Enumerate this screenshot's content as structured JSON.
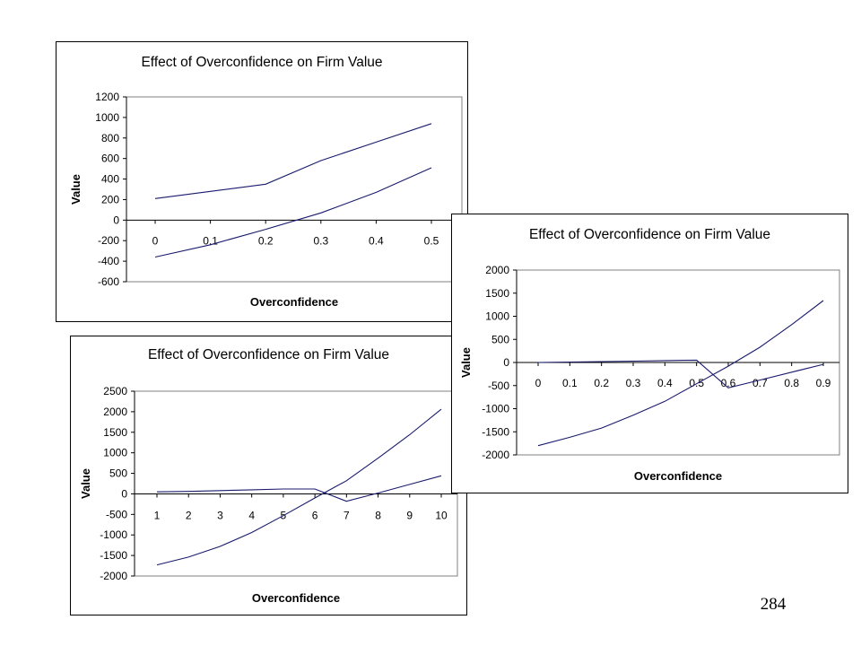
{
  "page": {
    "number": "284"
  },
  "chart_data": [
    {
      "type": "line",
      "title": "Effect of Overconfidence on Firm Value",
      "xlabel": "Overconfidence",
      "ylabel": "Value",
      "x": [
        0,
        0.1,
        0.2,
        0.3,
        0.4,
        0.5
      ],
      "x_tick_labels": [
        "0",
        "0.1",
        "0.2",
        "0.3",
        "0.4",
        "0.5"
      ],
      "ylim": [
        -600,
        1200
      ],
      "y_ticks": [
        -600,
        -400,
        -200,
        0,
        200,
        400,
        600,
        800,
        1000,
        1200
      ],
      "grid": false,
      "legend": "none",
      "line_color": "#1a1a6e",
      "series": [
        {
          "values": [
            210,
            280,
            350,
            580,
            760,
            940
          ]
        },
        {
          "values": [
            -360,
            -240,
            -90,
            70,
            270,
            510
          ]
        }
      ]
    },
    {
      "type": "line",
      "title": "Effect of Overconfidence on Firm Value",
      "xlabel": "Overconfidence",
      "ylabel": "Value",
      "x": [
        0,
        0.1,
        0.2,
        0.3,
        0.4,
        0.5,
        0.6,
        0.7,
        0.8,
        0.9
      ],
      "x_tick_labels": [
        "0",
        "0.1",
        "0.2",
        "0.3",
        "0.4",
        "0.5",
        "0.6",
        "0.7",
        "0.8",
        "0.9"
      ],
      "ylim": [
        -2000,
        2000
      ],
      "y_ticks": [
        -2000,
        -1500,
        -1000,
        -500,
        0,
        500,
        1000,
        1500,
        2000
      ],
      "grid": false,
      "legend": "none",
      "line_color": "#1a1a6e",
      "series": [
        {
          "values": [
            0,
            10,
            20,
            30,
            40,
            50,
            -550,
            -380,
            -210,
            -40
          ]
        },
        {
          "values": [
            -1800,
            -1620,
            -1420,
            -1140,
            -840,
            -460,
            -80,
            330,
            820,
            1340
          ]
        }
      ]
    },
    {
      "type": "line",
      "title": "Effect of Overconfidence on Firm Value",
      "xlabel": "Overconfidence",
      "ylabel": "Value",
      "x": [
        1,
        2,
        3,
        4,
        5,
        6,
        7,
        8,
        9,
        10
      ],
      "x_tick_labels": [
        "1",
        "2",
        "3",
        "4",
        "5",
        "6",
        "7",
        "8",
        "9",
        "10"
      ],
      "ylim": [
        -2000,
        2500
      ],
      "y_ticks": [
        -2000,
        -1500,
        -1000,
        -500,
        0,
        500,
        1000,
        1500,
        2000,
        2500
      ],
      "grid": false,
      "legend": "none",
      "line_color": "#1a1a6e",
      "series": [
        {
          "values": [
            50,
            60,
            80,
            100,
            120,
            120,
            -180,
            20,
            230,
            440
          ]
        },
        {
          "values": [
            -1730,
            -1540,
            -1280,
            -940,
            -530,
            -100,
            320,
            870,
            1440,
            2060
          ]
        }
      ]
    }
  ]
}
